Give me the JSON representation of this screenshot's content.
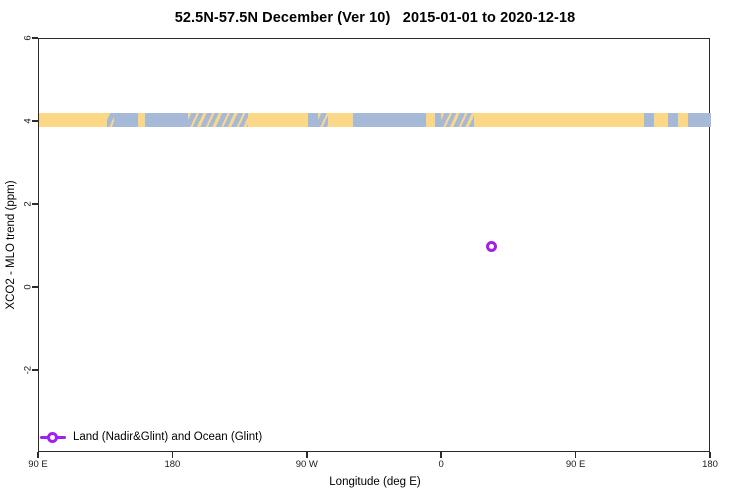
{
  "chart_data": {
    "type": "scatter",
    "title": "52.5N-57.5N December (Ver 10)   2015-01-01 to 2020-12-18",
    "xlabel": "Longitude (deg E)",
    "ylabel": "XCO2 - MLO trend (ppm)",
    "x_axis": {
      "description": "longitude axis wrapping eastward from 90E through 180, 90W, 0, 90E to 180 (450 degrees total)",
      "tick_labels": [
        "90 E",
        "180",
        "90 W",
        "0",
        "90 E",
        "180"
      ],
      "tick_positions_deg_from_left": [
        0,
        90,
        180,
        270,
        360,
        450
      ],
      "range_deg_from_left": [
        0,
        450
      ]
    },
    "y_axis": {
      "tick_labels": [
        "6",
        "4",
        "2",
        "0",
        "-2"
      ],
      "tick_values": [
        6,
        4,
        2,
        0,
        -2
      ],
      "ylim": [
        -4.0,
        6.05
      ],
      "grid": false
    },
    "points": [
      {
        "longitude_deg_E": 33,
        "x_axis_deg_from_left": 303,
        "value_ppm": 1.0
      }
    ],
    "surface_band": {
      "description": "continuous row of observations at ~4.05 ppm colored by surface type along 52.5N-57.5N",
      "value_ppm": 4.05,
      "half_width_ppm": 0.17,
      "segments": [
        {
          "from_deg": 0,
          "to_deg": 45.5,
          "surface": "land"
        },
        {
          "from_deg": 45.5,
          "to_deg": 50,
          "surface": "mixed"
        },
        {
          "from_deg": 50,
          "to_deg": 66,
          "surface": "ocean"
        },
        {
          "from_deg": 66,
          "to_deg": 71,
          "surface": "land"
        },
        {
          "from_deg": 71,
          "to_deg": 100,
          "surface": "ocean"
        },
        {
          "from_deg": 100,
          "to_deg": 140,
          "surface": "mixed"
        },
        {
          "from_deg": 140,
          "to_deg": 180,
          "surface": "land"
        },
        {
          "from_deg": 180,
          "to_deg": 187,
          "surface": "ocean"
        },
        {
          "from_deg": 187,
          "to_deg": 193.5,
          "surface": "mixed"
        },
        {
          "from_deg": 193.5,
          "to_deg": 210,
          "surface": "land"
        },
        {
          "from_deg": 210,
          "to_deg": 259,
          "surface": "ocean"
        },
        {
          "from_deg": 259,
          "to_deg": 265,
          "surface": "land"
        },
        {
          "from_deg": 265,
          "to_deg": 269,
          "surface": "ocean"
        },
        {
          "from_deg": 269,
          "to_deg": 291,
          "surface": "mixed"
        },
        {
          "from_deg": 291,
          "to_deg": 405,
          "surface": "land"
        },
        {
          "from_deg": 405,
          "to_deg": 412,
          "surface": "ocean"
        },
        {
          "from_deg": 412,
          "to_deg": 421,
          "surface": "land"
        },
        {
          "from_deg": 421,
          "to_deg": 428,
          "surface": "ocean"
        },
        {
          "from_deg": 428,
          "to_deg": 434.5,
          "surface": "land"
        },
        {
          "from_deg": 434.5,
          "to_deg": 450,
          "surface": "ocean"
        }
      ]
    },
    "legend": {
      "position": "bottom-left",
      "entries": [
        {
          "label": "Land (Nadir&Glint) and Ocean (Glint)",
          "symbol": "open-circle-on-line",
          "color": "#A020F0"
        }
      ]
    },
    "colors": {
      "land": "#FBD888",
      "ocean": "#A6BAD8",
      "accent": "#A020F0"
    }
  }
}
